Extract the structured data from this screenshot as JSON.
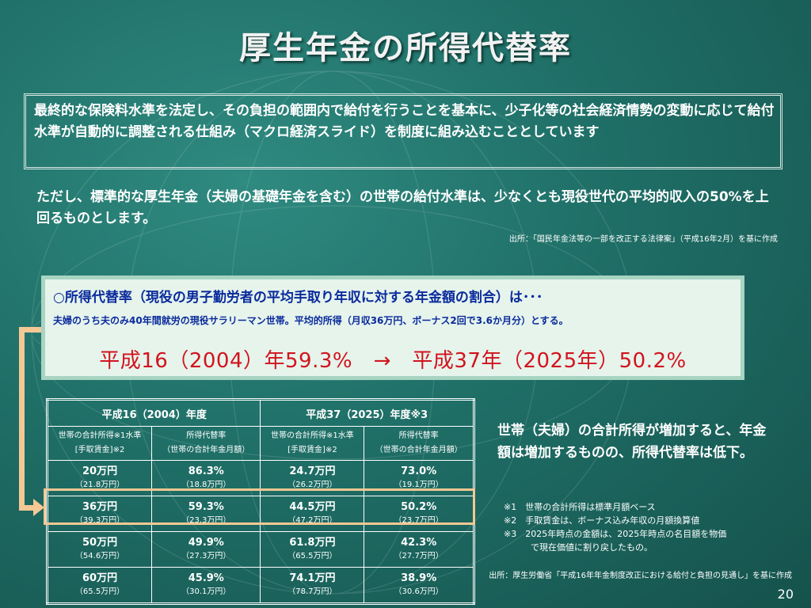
{
  "title": "厚生年金の所得代替率",
  "box1_text": "最終的な保険料水準を法定し、その負担の範囲内で給付を行うことを基本に、少子化等の社会経済情勢の変動に応じて給付水準が自動的に調整される仕組み（マクロ経済スライド）を制度に組み込むこととしています",
  "para2_text": "ただし、標準的な厚生年金（夫婦の基礎年金を含む）の世帯の給付水準は、少なくとも現役世代の平均的収入の50%を上回るものとします。",
  "source1": "出所：「国民年金法等の一部を改正する法律案」（平成16年2月）を基に作成",
  "box2": {
    "heading": "○所得代替率（現役の男子勤労者の平均手取り年収に対する年金額の割合）は･･･",
    "subline": "夫婦のうち夫のみ40年間就労の現役サラリーマン世帯。平均的所得（月収36万円、ボーナス2回で3.6か月分）とする。",
    "big": "平成16（2004）年59.3%　→　平成37年（2025年）50.2%"
  },
  "table": {
    "group_headers": [
      "平成16（2004）年度",
      "平成37（2025）年度※3"
    ],
    "sub_headers": [
      {
        "line1": "世帯の合計所得※1水準",
        "line2": "[手取賃金]※2"
      },
      {
        "line1": "所得代替率",
        "line2": "（世帯の合計年金月額）"
      },
      {
        "line1": "世帯の合計所得※1水準",
        "line2": "[手取賃金]※2"
      },
      {
        "line1": "所得代替率",
        "line2": "（世帯の合計年金月額）"
      }
    ],
    "rows": [
      [
        {
          "v": "20万円",
          "s": "（21.8万円）"
        },
        {
          "v": "86.3%",
          "s": "（18.8万円）"
        },
        {
          "v": "24.7万円",
          "s": "（26.2万円）"
        },
        {
          "v": "73.0%",
          "s": "（19.1万円）"
        }
      ],
      [
        {
          "v": "36万円",
          "s": "（39.3万円）"
        },
        {
          "v": "59.3%",
          "s": "（23.3万円）"
        },
        {
          "v": "44.5万円",
          "s": "（47.2万円）"
        },
        {
          "v": "50.2%",
          "s": "（23.7万円）"
        }
      ],
      [
        {
          "v": "50万円",
          "s": "（54.6万円）"
        },
        {
          "v": "49.9%",
          "s": "（27.3万円）"
        },
        {
          "v": "61.8万円",
          "s": "（65.5万円）"
        },
        {
          "v": "42.3%",
          "s": "（27.7万円）"
        }
      ],
      [
        {
          "v": "60万円",
          "s": "（65.5万円）"
        },
        {
          "v": "45.9%",
          "s": "（30.1万円）"
        },
        {
          "v": "74.1万円",
          "s": "（78.7万円）"
        },
        {
          "v": "38.9%",
          "s": "（30.6万円）"
        }
      ]
    ]
  },
  "side_text": "世帯（夫婦）の合計所得が増加すると、年金額は増加するものの、所得代替率は低下。",
  "notes": [
    "※1　世帯の合計所得は標準月額ベース",
    "※2　手取賃金は、ボーナス込み年収の月額換算値",
    "※3　2025年時点の金額は、2025年時点の名目額を物価",
    "で現在価値に割り戻したもの。"
  ],
  "source2": "出所：厚生労働省「平成16年年金制度改正における給付と負担の見通し」を基に作成",
  "page_number": "20",
  "colors": {
    "background": "#1f6f67",
    "box2_bg": "#e6f4ec",
    "heading_blue": "#0a2a9c",
    "big_red": "#d2141e",
    "highlight": "#f4c894"
  }
}
